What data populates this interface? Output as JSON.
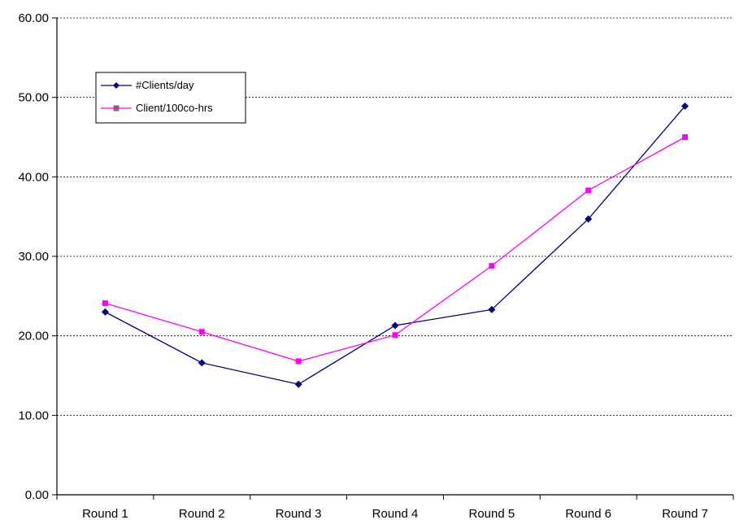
{
  "chart_data": {
    "type": "line",
    "title": "",
    "xlabel": "",
    "ylabel": "",
    "categories": [
      "Round 1",
      "Round 2",
      "Round 3",
      "Round 4",
      "Round 5",
      "Round 6",
      "Round 7"
    ],
    "ylim": [
      0,
      60
    ],
    "yticks": [
      "0.00",
      "10.00",
      "20.00",
      "30.00",
      "40.00",
      "50.00",
      "60.00"
    ],
    "grid": "horizontal dashed",
    "legend_placement": "top-left",
    "series": [
      {
        "name": "#Clients/day",
        "color": "#000080",
        "marker": "diamond",
        "values": [
          23.0,
          16.6,
          13.9,
          21.3,
          23.3,
          34.7,
          48.9
        ]
      },
      {
        "name": "Client/100co-hrs",
        "color": "#FF00FF",
        "marker": "square",
        "values": [
          24.1,
          20.5,
          16.8,
          20.1,
          28.8,
          38.3,
          45.0
        ]
      }
    ]
  }
}
